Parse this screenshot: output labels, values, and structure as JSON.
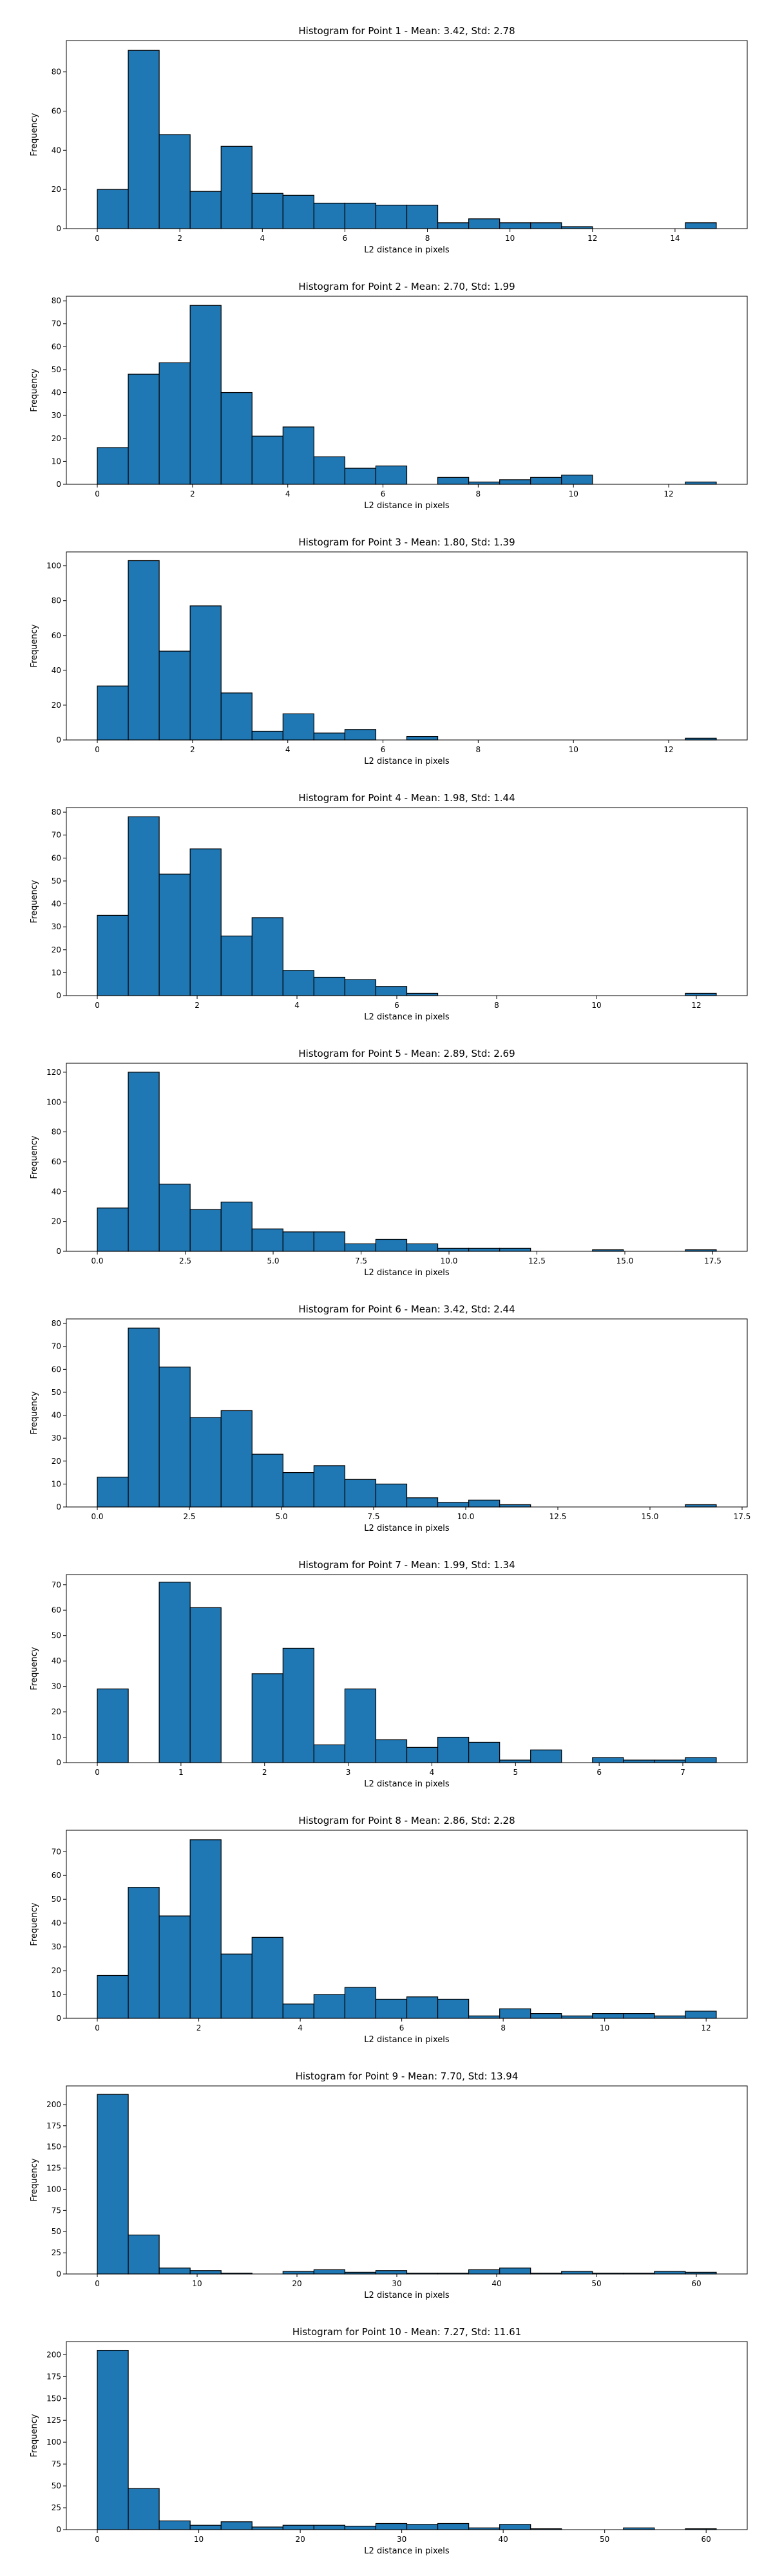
{
  "style": {
    "bar_color": "#1f77b4",
    "edge_color": "#000000",
    "background": "#ffffff"
  },
  "chart_data": [
    {
      "type": "bar",
      "title": "Histogram for Point 1 - Mean: 3.42, Std: 2.78",
      "xlabel": "L2 distance in pixels",
      "ylabel": "Frequency",
      "xlim": [
        -0.75,
        15.75
      ],
      "ylim": [
        0,
        96
      ],
      "xticks": [
        0,
        2,
        4,
        6,
        8,
        10,
        12,
        14
      ],
      "xtick_labels": [
        "0",
        "2",
        "4",
        "6",
        "8",
        "10",
        "12",
        "14"
      ],
      "yticks": [
        0,
        20,
        40,
        60,
        80
      ],
      "ytick_labels": [
        "0",
        "20",
        "40",
        "60",
        "80"
      ],
      "bin_edges": [
        0,
        0.75,
        1.5,
        2.25,
        3,
        3.75,
        4.5,
        5.25,
        6,
        6.75,
        7.5,
        8.25,
        9,
        9.75,
        10.5,
        11.25,
        12,
        12.75,
        13.5,
        14.25,
        15
      ],
      "values": [
        20,
        91,
        48,
        19,
        42,
        18,
        17,
        13,
        13,
        12,
        12,
        3,
        5,
        3,
        3,
        1,
        0,
        0,
        0,
        3
      ]
    },
    {
      "type": "bar",
      "title": "Histogram for Point 2 - Mean: 2.70, Std: 1.99",
      "xlabel": "L2 distance in pixels",
      "ylabel": "Frequency",
      "xlim": [
        -0.65,
        13.65
      ],
      "ylim": [
        0,
        82
      ],
      "xticks": [
        0,
        2,
        4,
        6,
        8,
        10,
        12
      ],
      "xtick_labels": [
        "0",
        "2",
        "4",
        "6",
        "8",
        "10",
        "12"
      ],
      "yticks": [
        0,
        10,
        20,
        30,
        40,
        50,
        60,
        70,
        80
      ],
      "ytick_labels": [
        "0",
        "10",
        "20",
        "30",
        "40",
        "50",
        "60",
        "70",
        "80"
      ],
      "bin_edges": [
        0,
        0.65,
        1.3,
        1.95,
        2.6,
        3.25,
        3.9,
        4.55,
        5.2,
        5.85,
        6.5,
        7.15,
        7.8,
        8.45,
        9.1,
        9.75,
        10.4,
        11.05,
        11.7,
        12.35,
        13
      ],
      "values": [
        16,
        48,
        53,
        78,
        40,
        21,
        25,
        12,
        7,
        8,
        0,
        3,
        1,
        2,
        3,
        4,
        0,
        0,
        0,
        1
      ]
    },
    {
      "type": "bar",
      "title": "Histogram for Point 3 - Mean: 1.80, Std: 1.39",
      "xlabel": "L2 distance in pixels",
      "ylabel": "Frequency",
      "xlim": [
        -0.65,
        13.65
      ],
      "ylim": [
        0,
        108
      ],
      "xticks": [
        0,
        2,
        4,
        6,
        8,
        10,
        12
      ],
      "xtick_labels": [
        "0",
        "2",
        "4",
        "6",
        "8",
        "10",
        "12"
      ],
      "yticks": [
        0,
        20,
        40,
        60,
        80,
        100
      ],
      "ytick_labels": [
        "0",
        "20",
        "40",
        "60",
        "80",
        "100"
      ],
      "bin_edges": [
        0,
        0.65,
        1.3,
        1.95,
        2.6,
        3.25,
        3.9,
        4.55,
        5.2,
        5.85,
        6.5,
        7.15,
        7.8,
        8.45,
        9.1,
        9.75,
        10.4,
        11.05,
        11.7,
        12.35,
        13
      ],
      "values": [
        31,
        103,
        51,
        77,
        27,
        5,
        15,
        4,
        6,
        0,
        2,
        0,
        0,
        0,
        0,
        0,
        0,
        0,
        0,
        1
      ]
    },
    {
      "type": "bar",
      "title": "Histogram for Point 4 - Mean: 1.98, Std: 1.44",
      "xlabel": "L2 distance in pixels",
      "ylabel": "Frequency",
      "xlim": [
        -0.62,
        13.02
      ],
      "ylim": [
        0,
        82
      ],
      "xticks": [
        0,
        2,
        4,
        6,
        8,
        10,
        12
      ],
      "xtick_labels": [
        "0",
        "2",
        "4",
        "6",
        "8",
        "10",
        "12"
      ],
      "yticks": [
        0,
        10,
        20,
        30,
        40,
        50,
        60,
        70,
        80
      ],
      "ytick_labels": [
        "0",
        "10",
        "20",
        "30",
        "40",
        "50",
        "60",
        "70",
        "80"
      ],
      "bin_edges": [
        0,
        0.62,
        1.24,
        1.86,
        2.48,
        3.1,
        3.72,
        4.34,
        4.96,
        5.58,
        6.2,
        6.82,
        7.44,
        8.06,
        8.68,
        9.3,
        9.92,
        10.54,
        11.16,
        11.78,
        12.4
      ],
      "values": [
        35,
        78,
        53,
        64,
        26,
        34,
        11,
        8,
        7,
        4,
        1,
        0,
        0,
        0,
        0,
        0,
        0,
        0,
        0,
        1
      ]
    },
    {
      "type": "bar",
      "title": "Histogram for Point 5 - Mean: 2.89, Std: 2.69",
      "xlabel": "L2 distance in pixels",
      "ylabel": "Frequency",
      "xlim": [
        -0.88,
        18.48
      ],
      "ylim": [
        0,
        126
      ],
      "xticks": [
        0,
        2.5,
        5,
        7.5,
        10,
        12.5,
        15,
        17.5
      ],
      "xtick_labels": [
        "0.0",
        "2.5",
        "5.0",
        "7.5",
        "10.0",
        "12.5",
        "15.0",
        "17.5"
      ],
      "yticks": [
        0,
        20,
        40,
        60,
        80,
        100,
        120
      ],
      "ytick_labels": [
        "0",
        "20",
        "40",
        "60",
        "80",
        "100",
        "120"
      ],
      "bin_edges": [
        0,
        0.88,
        1.76,
        2.64,
        3.52,
        4.4,
        5.28,
        6.16,
        7.04,
        7.92,
        8.8,
        9.68,
        10.56,
        11.44,
        12.32,
        13.2,
        14.08,
        14.96,
        15.84,
        16.72,
        17.6
      ],
      "values": [
        29,
        120,
        45,
        28,
        33,
        15,
        13,
        13,
        5,
        8,
        5,
        2,
        2,
        2,
        0,
        0,
        1,
        0,
        0,
        1
      ]
    },
    {
      "type": "bar",
      "title": "Histogram for Point 6 - Mean: 3.42, Std: 2.44",
      "xlabel": "L2 distance in pixels",
      "ylabel": "Frequency",
      "xlim": [
        -0.84,
        17.64
      ],
      "ylim": [
        0,
        82
      ],
      "xticks": [
        0,
        2.5,
        5,
        7.5,
        10,
        12.5,
        15,
        17.5
      ],
      "xtick_labels": [
        "0.0",
        "2.5",
        "5.0",
        "7.5",
        "10.0",
        "12.5",
        "15.0",
        "17.5"
      ],
      "yticks": [
        0,
        10,
        20,
        30,
        40,
        50,
        60,
        70,
        80
      ],
      "ytick_labels": [
        "0",
        "10",
        "20",
        "30",
        "40",
        "50",
        "60",
        "70",
        "80"
      ],
      "bin_edges": [
        0,
        0.84,
        1.68,
        2.52,
        3.36,
        4.2,
        5.04,
        5.88,
        6.72,
        7.56,
        8.4,
        9.24,
        10.08,
        10.92,
        11.76,
        12.6,
        13.44,
        14.28,
        15.12,
        15.96,
        16.8
      ],
      "values": [
        13,
        78,
        61,
        39,
        42,
        23,
        15,
        18,
        12,
        10,
        4,
        2,
        3,
        1,
        0,
        0,
        0,
        0,
        0,
        1
      ]
    },
    {
      "type": "bar",
      "title": "Histogram for Point 7 - Mean: 1.99, Std: 1.34",
      "xlabel": "L2 distance in pixels",
      "ylabel": "Frequency",
      "xlim": [
        -0.37,
        7.77
      ],
      "ylim": [
        0,
        74
      ],
      "xticks": [
        0,
        1,
        2,
        3,
        4,
        5,
        6,
        7
      ],
      "xtick_labels": [
        "0",
        "1",
        "2",
        "3",
        "4",
        "5",
        "6",
        "7"
      ],
      "yticks": [
        0,
        10,
        20,
        30,
        40,
        50,
        60,
        70
      ],
      "ytick_labels": [
        "0",
        "10",
        "20",
        "30",
        "40",
        "50",
        "60",
        "70"
      ],
      "bin_edges": [
        0,
        0.37,
        0.74,
        1.11,
        1.48,
        1.85,
        2.22,
        2.59,
        2.96,
        3.33,
        3.7,
        4.07,
        4.44,
        4.81,
        5.18,
        5.55,
        5.92,
        6.29,
        6.66,
        7.03,
        7.4
      ],
      "values": [
        29,
        0,
        71,
        61,
        0,
        35,
        45,
        7,
        29,
        9,
        6,
        10,
        8,
        1,
        5,
        0,
        2,
        1,
        1,
        2
      ]
    },
    {
      "type": "bar",
      "title": "Histogram for Point 8 - Mean: 2.86, Std: 2.28",
      "xlabel": "L2 distance in pixels",
      "ylabel": "Frequency",
      "xlim": [
        -0.61,
        12.81
      ],
      "ylim": [
        0,
        79
      ],
      "xticks": [
        0,
        2,
        4,
        6,
        8,
        10,
        12
      ],
      "xtick_labels": [
        "0",
        "2",
        "4",
        "6",
        "8",
        "10",
        "12"
      ],
      "yticks": [
        0,
        10,
        20,
        30,
        40,
        50,
        60,
        70
      ],
      "ytick_labels": [
        "0",
        "10",
        "20",
        "30",
        "40",
        "50",
        "60",
        "70"
      ],
      "bin_edges": [
        0,
        0.61,
        1.22,
        1.83,
        2.44,
        3.05,
        3.66,
        4.27,
        4.88,
        5.49,
        6.1,
        6.71,
        7.32,
        7.93,
        8.54,
        9.15,
        9.76,
        10.37,
        10.98,
        11.59,
        12.2
      ],
      "values": [
        18,
        55,
        43,
        75,
        27,
        34,
        6,
        10,
        13,
        8,
        9,
        8,
        1,
        4,
        2,
        1,
        2,
        2,
        1,
        3
      ]
    },
    {
      "type": "bar",
      "title": "Histogram for Point 9 - Mean: 7.70, Std: 13.94",
      "xlabel": "L2 distance in pixels",
      "ylabel": "Frequency",
      "xlim": [
        -3.1,
        65.1
      ],
      "ylim": [
        0,
        222
      ],
      "xticks": [
        0,
        10,
        20,
        30,
        40,
        50,
        60
      ],
      "xtick_labels": [
        "0",
        "10",
        "20",
        "30",
        "40",
        "50",
        "60"
      ],
      "yticks": [
        0,
        25,
        50,
        75,
        100,
        125,
        150,
        175,
        200
      ],
      "ytick_labels": [
        "0",
        "25",
        "50",
        "75",
        "100",
        "125",
        "150",
        "175",
        "200"
      ],
      "bin_edges": [
        0,
        3.1,
        6.2,
        9.3,
        12.4,
        15.5,
        18.6,
        21.7,
        24.8,
        27.9,
        31,
        34.1,
        37.2,
        40.3,
        43.4,
        46.5,
        49.6,
        52.7,
        55.8,
        58.9,
        62
      ],
      "values": [
        212,
        46,
        7,
        4,
        1,
        0,
        3,
        5,
        2,
        4,
        1,
        1,
        5,
        7,
        1,
        3,
        1,
        1,
        3,
        2
      ]
    },
    {
      "type": "bar",
      "title": "Histogram for Point 10 - Mean: 7.27, Std: 11.61",
      "xlabel": "L2 distance in pixels",
      "ylabel": "Frequency",
      "xlim": [
        -3.05,
        64.05
      ],
      "ylim": [
        0,
        215
      ],
      "xticks": [
        0,
        10,
        20,
        30,
        40,
        50,
        60
      ],
      "xtick_labels": [
        "0",
        "10",
        "20",
        "30",
        "40",
        "50",
        "60"
      ],
      "yticks": [
        0,
        25,
        50,
        75,
        100,
        125,
        150,
        175,
        200
      ],
      "ytick_labels": [
        "0",
        "25",
        "50",
        "75",
        "100",
        "125",
        "150",
        "175",
        "200"
      ],
      "bin_edges": [
        0,
        3.05,
        6.1,
        9.15,
        12.2,
        15.25,
        18.3,
        21.35,
        24.4,
        27.45,
        30.5,
        33.55,
        36.6,
        39.65,
        42.7,
        45.75,
        48.8,
        51.85,
        54.9,
        57.95,
        61
      ],
      "values": [
        205,
        47,
        10,
        5,
        9,
        3,
        5,
        5,
        4,
        7,
        6,
        7,
        2,
        6,
        1,
        0,
        0,
        2,
        0,
        1
      ]
    }
  ]
}
